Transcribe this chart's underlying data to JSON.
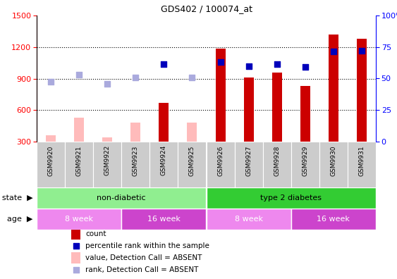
{
  "title": "GDS402 / 100074_at",
  "samples": [
    "GSM9920",
    "GSM9921",
    "GSM9922",
    "GSM9923",
    "GSM9924",
    "GSM9925",
    "GSM9926",
    "GSM9927",
    "GSM9928",
    "GSM9929",
    "GSM9930",
    "GSM9931"
  ],
  "count_values": [
    null,
    null,
    null,
    null,
    670,
    null,
    1185,
    910,
    960,
    830,
    1320,
    1280
  ],
  "count_absent_values": [
    360,
    530,
    340,
    480,
    null,
    480,
    null,
    null,
    null,
    null,
    null,
    null
  ],
  "rank_present_values": [
    null,
    null,
    null,
    null,
    1040,
    null,
    1060,
    1020,
    1040,
    1010,
    1160,
    1165
  ],
  "rank_absent_values": [
    870,
    940,
    850,
    910,
    null,
    910,
    null,
    null,
    null,
    null,
    null,
    null
  ],
  "ylim_left": [
    300,
    1500
  ],
  "ylim_right": [
    0,
    100
  ],
  "yticks_left": [
    300,
    600,
    900,
    1200,
    1500
  ],
  "yticks_right": [
    0,
    25,
    50,
    75,
    100
  ],
  "disease_state": [
    {
      "label": "non-diabetic",
      "start": 0,
      "end": 6,
      "color": "#90ee90"
    },
    {
      "label": "type 2 diabetes",
      "start": 6,
      "end": 12,
      "color": "#33cc33"
    }
  ],
  "age": [
    {
      "label": "8 week",
      "start": 0,
      "end": 3,
      "color": "#ee88ee"
    },
    {
      "label": "16 week",
      "start": 3,
      "end": 6,
      "color": "#cc44cc"
    },
    {
      "label": "8 week",
      "start": 6,
      "end": 9,
      "color": "#ee88ee"
    },
    {
      "label": "16 week",
      "start": 9,
      "end": 12,
      "color": "#cc44cc"
    }
  ],
  "color_count": "#cc0000",
  "color_rank_present": "#0000bb",
  "color_count_absent": "#ffbbbb",
  "color_rank_absent": "#aaaadd",
  "bar_width": 0.35,
  "dot_size": 35,
  "grid_color": "#000000",
  "fig_width": 5.63,
  "fig_height": 3.96,
  "dpi": 100
}
